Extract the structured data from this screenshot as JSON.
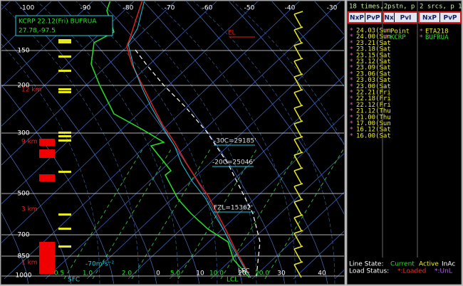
{
  "plot": {
    "top_temperature_labels": [
      "-100",
      "-90",
      "-80",
      "-70",
      "-60",
      "-50",
      "-40",
      "-30"
    ],
    "pressure_labels": [
      "150",
      "200",
      "300",
      "500",
      "700",
      "850",
      "1000"
    ],
    "height_labels": [
      "12 km",
      "9 km",
      "3 km",
      "1 km"
    ],
    "station_box": {
      "line1": "KCRP 22.12(Fri) BUFRUA",
      "line2": "27.78,-97.5"
    },
    "bottom_labels": [
      "0.5",
      "1.0",
      "2.0",
      "0",
      "5.0",
      "10",
      "10.0",
      "20",
      "20.0",
      "30",
      "40"
    ],
    "annotations": {
      "el": "EL",
      "minus30": "-30C=29185'",
      "minus20": "-20C=25046'",
      "fzl": "FZL=15362'",
      "helicity": "-70m²s⁻²",
      "sfc": "SFC",
      "lfc": "LFC",
      "lcl": "LCL"
    }
  },
  "panel": {
    "headers": [
      "18 times, p",
      "2 stn, p",
      "2 srcs, p 1"
    ],
    "buttons": [
      [
        "NxP",
        "PvP"
      ],
      [
        "Nx",
        "PvI"
      ],
      [
        "NxP",
        "PvP"
      ]
    ],
    "times": [
      {
        "mark": "*",
        "label": "24.03(Sun"
      },
      {
        "mark": "*",
        "label": "24.00(Sun"
      },
      {
        "mark": "*",
        "label": "23.21(Sat"
      },
      {
        "mark": "*",
        "label": "23.18(Sat"
      },
      {
        "mark": "*",
        "label": "23.15(Sat"
      },
      {
        "mark": "*",
        "label": "23.12(Sat"
      },
      {
        "mark": "*",
        "label": "23.09(Sat"
      },
      {
        "mark": "*",
        "label": "23.06(Sat"
      },
      {
        "mark": "*",
        "label": "23.03(Sat"
      },
      {
        "mark": "*",
        "label": "23.00(Sat"
      },
      {
        "mark": "*",
        "label": "22.21(Fri"
      },
      {
        "mark": "*",
        "label": "22.18(Fri"
      },
      {
        "mark": "*",
        "label": "22.12(Fri"
      },
      {
        "mark": "*",
        "label": "21.12(Thu"
      },
      {
        "mark": "*",
        "label": "21.00(Thu"
      },
      {
        "mark": "*",
        "label": "17.00(Sun"
      },
      {
        "mark": "*",
        "label": "16.12(Sat"
      },
      {
        "mark": "*",
        "label": "16.00(Sat"
      }
    ],
    "stations": [
      {
        "mark": "*",
        "label": "Point"
      },
      {
        "mark": "*",
        "label": "KCRP"
      }
    ],
    "sources": [
      {
        "mark": "*",
        "label": "ETA218"
      },
      {
        "mark": "*",
        "label": "BUFRUA"
      }
    ],
    "line_state": {
      "label": "Line State:",
      "current": "Current",
      "active": "Active",
      "inactive": "InAc"
    },
    "load_status": {
      "label": "Load Status:",
      "loaded": "*:Loaded",
      "unloaded": "*:UnL"
    }
  }
}
